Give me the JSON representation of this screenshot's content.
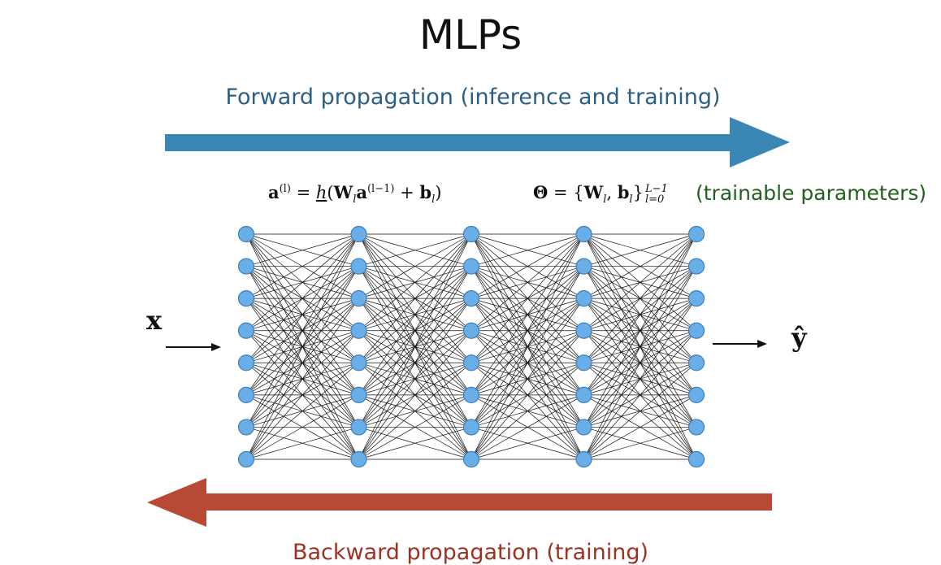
{
  "title": "MLPs",
  "forward_label": "Forward propagation (inference and training)",
  "backward_label": "Backward propagation (training)",
  "formula_activation": {
    "lhs": "a",
    "lhs_sup": "(l)",
    "eq": " = ",
    "func": "h",
    "w": "W",
    "w_sub": "l",
    "a": "a",
    "a_sup": "(l−1)",
    "plus": " + ",
    "b": "b",
    "b_sub": "l",
    "close": ")"
  },
  "formula_params": {
    "theta": "Θ",
    "eq": " = {",
    "w": "W",
    "w_sub": "l",
    "comma": ", ",
    "b": "b",
    "b_sub": "l",
    "close": "}",
    "sup": "L−1",
    "sub": "l=0"
  },
  "trainable_label": "(trainable parameters)",
  "input_label": "x",
  "output_label": "ŷ",
  "network": {
    "layers": 5,
    "neurons_per_layer": 8,
    "neuron_color": "#6aaee8",
    "neuron_stroke": "#3c7fc0"
  },
  "colors": {
    "forward_arrow": "#3a87b5",
    "backward_arrow": "#b84a35",
    "forward_text": "#2b5f86",
    "backward_text": "#9b3222",
    "trainable_text": "#22601f"
  }
}
